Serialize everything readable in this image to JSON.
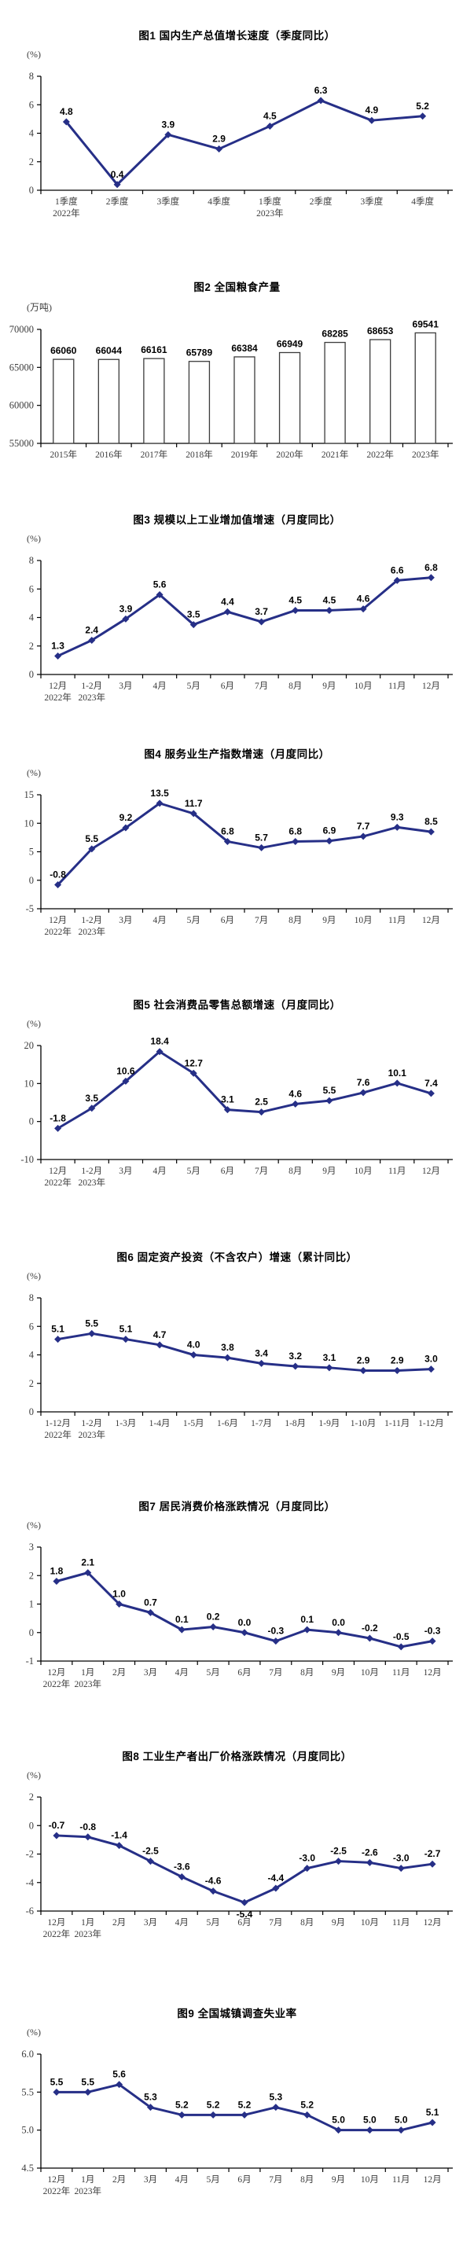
{
  "page": {
    "background": "#ffffff",
    "accent_line_color": "#262f87"
  },
  "chart_data": [
    {
      "type": "line",
      "title": "图1  国内生产总值增长速度（季度同比）",
      "unit": "(%)",
      "categories": [
        "1季度",
        "2季度",
        "3季度",
        "4季度",
        "1季度",
        "2季度",
        "3季度",
        "4季度"
      ],
      "year_labels": [
        {
          "index": 0,
          "text": "2022年"
        },
        {
          "index": 4,
          "text": "2023年"
        }
      ],
      "values": [
        4.8,
        0.4,
        3.9,
        2.9,
        4.5,
        6.3,
        4.9,
        5.2
      ],
      "labels": [
        "4.8",
        "0.4",
        "3.9",
        "2.9",
        "4.5",
        "6.3",
        "4.9",
        "5.2"
      ],
      "ylim": [
        0,
        8
      ],
      "yticks": [
        0,
        2,
        4,
        6,
        8
      ],
      "ytick_labels": [
        "0",
        "2",
        "4",
        "6",
        "8"
      ],
      "label_below": [],
      "color": "#262f87"
    },
    {
      "type": "bar",
      "title": "图2  全国粮食产量",
      "unit": "(万吨)",
      "categories": [
        "2015年",
        "2016年",
        "2017年",
        "2018年",
        "2019年",
        "2020年",
        "2021年",
        "2022年",
        "2023年"
      ],
      "year_labels": [],
      "values": [
        66060,
        66044,
        66161,
        65789,
        66384,
        66949,
        68285,
        68653,
        69541
      ],
      "labels": [
        "66060",
        "66044",
        "66161",
        "65789",
        "66384",
        "66949",
        "68285",
        "68653",
        "69541"
      ],
      "ylim": [
        55000,
        70000
      ],
      "yticks": [
        55000,
        60000,
        65000,
        70000
      ],
      "ytick_labels": [
        "55000",
        "60000",
        "65000",
        "70000"
      ],
      "label_below": [],
      "color": "#3c3c3c"
    },
    {
      "type": "line",
      "title": "图3  规模以上工业增加值增速（月度同比）",
      "unit": "(%)",
      "categories": [
        "12月",
        "1-2月",
        "3月",
        "4月",
        "5月",
        "6月",
        "7月",
        "8月",
        "9月",
        "10月",
        "11月",
        "12月"
      ],
      "year_labels": [
        {
          "index": 0,
          "text": "2022年"
        },
        {
          "index": 1,
          "text": "2023年"
        }
      ],
      "values": [
        1.3,
        2.4,
        3.9,
        5.6,
        3.5,
        4.4,
        3.7,
        4.5,
        4.5,
        4.6,
        6.6,
        6.8
      ],
      "labels": [
        "1.3",
        "2.4",
        "3.9",
        "5.6",
        "3.5",
        "4.4",
        "3.7",
        "4.5",
        "4.5",
        "4.6",
        "6.6",
        "6.8"
      ],
      "ylim": [
        0,
        8
      ],
      "yticks": [
        0,
        2,
        4,
        6,
        8
      ],
      "ytick_labels": [
        "0",
        "2",
        "4",
        "6",
        "8"
      ],
      "label_below": [],
      "color": "#262f87"
    },
    {
      "type": "line",
      "title": "图4  服务业生产指数增速（月度同比）",
      "unit": "(%)",
      "categories": [
        "12月",
        "1-2月",
        "3月",
        "4月",
        "5月",
        "6月",
        "7月",
        "8月",
        "9月",
        "10月",
        "11月",
        "12月"
      ],
      "year_labels": [
        {
          "index": 0,
          "text": "2022年"
        },
        {
          "index": 1,
          "text": "2023年"
        }
      ],
      "values": [
        -0.8,
        5.5,
        9.2,
        13.5,
        11.7,
        6.8,
        5.7,
        6.8,
        6.9,
        7.7,
        9.3,
        8.5
      ],
      "labels": [
        "-0.8",
        "5.5",
        "9.2",
        "13.5",
        "11.7",
        "6.8",
        "5.7",
        "6.8",
        "6.9",
        "7.7",
        "9.3",
        "8.5"
      ],
      "ylim": [
        -5,
        15
      ],
      "yticks": [
        -5,
        0,
        5,
        10,
        15
      ],
      "ytick_labels": [
        "-5",
        "0",
        "5",
        "10",
        "15"
      ],
      "label_below": [],
      "color": "#262f87"
    },
    {
      "type": "line",
      "title": "图5  社会消费品零售总额增速（月度同比）",
      "unit": "(%)",
      "categories": [
        "12月",
        "1-2月",
        "3月",
        "4月",
        "5月",
        "6月",
        "7月",
        "8月",
        "9月",
        "10月",
        "11月",
        "12月"
      ],
      "year_labels": [
        {
          "index": 0,
          "text": "2022年"
        },
        {
          "index": 1,
          "text": "2023年"
        }
      ],
      "values": [
        -1.8,
        3.5,
        10.6,
        18.4,
        12.7,
        3.1,
        2.5,
        4.6,
        5.5,
        7.6,
        10.1,
        7.4
      ],
      "labels": [
        "-1.8",
        "3.5",
        "10.6",
        "18.4",
        "12.7",
        "3.1",
        "2.5",
        "4.6",
        "5.5",
        "7.6",
        "10.1",
        "7.4"
      ],
      "ylim": [
        -10,
        20
      ],
      "yticks": [
        -10,
        0,
        10,
        20
      ],
      "ytick_labels": [
        "-10",
        "0",
        "10",
        "20"
      ],
      "label_below": [],
      "color": "#262f87"
    },
    {
      "type": "line",
      "title": "图6  固定资产投资（不含农户）增速（累计同比）",
      "unit": "(%)",
      "categories": [
        "1-12月",
        "1-2月",
        "1-3月",
        "1-4月",
        "1-5月",
        "1-6月",
        "1-7月",
        "1-8月",
        "1-9月",
        "1-10月",
        "1-11月",
        "1-12月"
      ],
      "year_labels": [
        {
          "index": 0,
          "text": "2022年"
        },
        {
          "index": 1,
          "text": "2023年"
        }
      ],
      "values": [
        5.1,
        5.5,
        5.1,
        4.7,
        4.0,
        3.8,
        3.4,
        3.2,
        3.1,
        2.9,
        2.9,
        3.0
      ],
      "labels": [
        "5.1",
        "5.5",
        "5.1",
        "4.7",
        "4.0",
        "3.8",
        "3.4",
        "3.2",
        "3.1",
        "2.9",
        "2.9",
        "3.0"
      ],
      "ylim": [
        0,
        8
      ],
      "yticks": [
        0,
        2,
        4,
        6,
        8
      ],
      "ytick_labels": [
        "0",
        "2",
        "4",
        "6",
        "8"
      ],
      "label_below": [],
      "color": "#262f87"
    },
    {
      "type": "line",
      "title": "图7  居民消费价格涨跌情况（月度同比）",
      "unit": "(%)",
      "categories": [
        "12月",
        "1月",
        "2月",
        "3月",
        "4月",
        "5月",
        "6月",
        "7月",
        "8月",
        "9月",
        "10月",
        "11月",
        "12月"
      ],
      "year_labels": [
        {
          "index": 0,
          "text": "2022年"
        },
        {
          "index": 1,
          "text": "2023年"
        }
      ],
      "values": [
        1.8,
        2.1,
        1.0,
        0.7,
        0.1,
        0.2,
        0.0,
        -0.3,
        0.1,
        0.0,
        -0.2,
        -0.5,
        -0.3
      ],
      "labels": [
        "1.8",
        "2.1",
        "1.0",
        "0.7",
        "0.1",
        "0.2",
        "0.0",
        "-0.3",
        "0.1",
        "0.0",
        "-0.2",
        "-0.5",
        "-0.3"
      ],
      "ylim": [
        -1,
        3
      ],
      "yticks": [
        -1,
        0,
        1,
        2,
        3
      ],
      "ytick_labels": [
        "-1",
        "0",
        "1",
        "2",
        "3"
      ],
      "label_below": [],
      "color": "#262f87"
    },
    {
      "type": "line",
      "title": "图8  工业生产者出厂价格涨跌情况（月度同比）",
      "unit": "(%)",
      "categories": [
        "12月",
        "1月",
        "2月",
        "3月",
        "4月",
        "5月",
        "6月",
        "7月",
        "8月",
        "9月",
        "10月",
        "11月",
        "12月"
      ],
      "year_labels": [
        {
          "index": 0,
          "text": "2022年"
        },
        {
          "index": 1,
          "text": "2023年"
        }
      ],
      "values": [
        -0.7,
        -0.8,
        -1.4,
        -2.5,
        -3.6,
        -4.6,
        -5.4,
        -4.4,
        -3.0,
        -2.5,
        -2.6,
        -3.0,
        -2.7
      ],
      "labels": [
        "-0.7",
        "-0.8",
        "-1.4",
        "-2.5",
        "-3.6",
        "-4.6",
        "-5.4",
        "-4.4",
        "-3.0",
        "-2.5",
        "-2.6",
        "-3.0",
        "-2.7"
      ],
      "ylim": [
        -6,
        2
      ],
      "yticks": [
        -6,
        -4,
        -2,
        0,
        2
      ],
      "ytick_labels": [
        "-6",
        "-4",
        "-2",
        "0",
        "2"
      ],
      "label_below": [
        6
      ],
      "color": "#262f87"
    },
    {
      "type": "line",
      "title": "图9  全国城镇调查失业率",
      "unit": "(%)",
      "categories": [
        "12月",
        "1月",
        "2月",
        "3月",
        "4月",
        "5月",
        "6月",
        "7月",
        "8月",
        "9月",
        "10月",
        "11月",
        "12月"
      ],
      "year_labels": [
        {
          "index": 0,
          "text": "2022年"
        },
        {
          "index": 1,
          "text": "2023年"
        }
      ],
      "values": [
        5.5,
        5.5,
        5.6,
        5.3,
        5.2,
        5.2,
        5.2,
        5.3,
        5.2,
        5.0,
        5.0,
        5.0,
        5.1
      ],
      "labels": [
        "5.5",
        "5.5",
        "5.6",
        "5.3",
        "5.2",
        "5.2",
        "5.2",
        "5.3",
        "5.2",
        "5.0",
        "5.0",
        "5.0",
        "5.1"
      ],
      "ylim": [
        4.5,
        6.0
      ],
      "yticks": [
        4.5,
        5.0,
        5.5,
        6.0
      ],
      "ytick_labels": [
        "4.5",
        "5.0",
        "5.5",
        "6.0"
      ],
      "label_below": [],
      "color": "#262f87"
    }
  ]
}
